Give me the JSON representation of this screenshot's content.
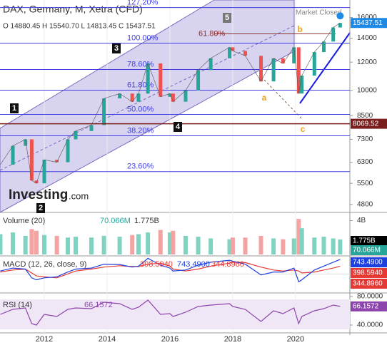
{
  "header": {
    "title": "DAX, Germany, M, Xetra (CFD)",
    "ohlc": "O 14880.45 H 15540.70 L 14813.45 C 15437.51",
    "status": "Market Closed",
    "logo": "Investing",
    "logo_suffix": ".com"
  },
  "annotations": [
    "1",
    "2",
    "3",
    "4",
    "5",
    "a",
    "b",
    "c"
  ],
  "chart_data": [
    {
      "type": "line",
      "name": "price",
      "x": [
        2010.6,
        2011.0,
        2011.4,
        2011.6,
        2011.75,
        2012.0,
        2012.4,
        2012.75,
        2013.0,
        2013.5,
        2013.9,
        2014.4,
        2014.8,
        2015.0,
        2015.3,
        2015.7,
        2016.0,
        2016.1,
        2016.5,
        2016.9,
        2017.3,
        2017.9,
        2018.0,
        2018.4,
        2018.9,
        2019.3,
        2019.6,
        2019.95,
        2020.1,
        2020.2,
        2020.6,
        2020.9,
        2021.2,
        2021.42
      ],
      "values": [
        6200,
        7000,
        7300,
        5600,
        5500,
        6400,
        6300,
        7300,
        7700,
        8000,
        9500,
        9800,
        9300,
        9800,
        11900,
        9600,
        9800,
        9300,
        10000,
        11400,
        12300,
        13200,
        12900,
        12500,
        10600,
        12300,
        11900,
        13200,
        9800,
        11000,
        12800,
        13700,
        15000,
        15437.51
      ],
      "color": "#26a69a",
      "down_color": "#ef5350",
      "log_scale": true,
      "ylim": [
        4560,
        17900
      ],
      "yticks": [
        4800,
        5500,
        6300,
        7300,
        8500,
        10000,
        12000,
        14000,
        16000
      ],
      "xlim": [
        2010.59,
        2021.73
      ],
      "xticks": [
        2012,
        2014,
        2016,
        2018,
        2020
      ],
      "fib_levels": [
        {
          "label": "127.20%",
          "value": 17050
        },
        {
          "label": "100.00%",
          "value": 13560
        },
        {
          "label": "78.60%",
          "value": 11440
        },
        {
          "label": "61.80%",
          "value": 10020
        },
        {
          "label": "50.00%",
          "value": 8570
        },
        {
          "label": "38.20%",
          "value": 7470
        },
        {
          "label": "23.60%",
          "value": 5930
        }
      ],
      "fib_color": "#3f3fdf",
      "retracement": {
        "label": "61.80%",
        "value": 14400,
        "color": "#8b2e2e"
      },
      "price_tags": [
        {
          "value": 15437.51,
          "label": "15437.51",
          "color": "#1e88e5"
        },
        {
          "value": 8069.52,
          "label": "8069.52",
          "color": "#7b1e1e"
        }
      ]
    },
    {
      "type": "bar",
      "name": "volume",
      "title": "Volume (20)",
      "readings": [
        "70.066M",
        "1.775B"
      ],
      "values": [
        2.4,
        2.6,
        2.2,
        3.0,
        2.8,
        2.3,
        2.2,
        2.0,
        2.1,
        2.0,
        2.2,
        2.1,
        2.3,
        2.4,
        2.6,
        2.9,
        2.6,
        2.8,
        2.2,
        2.1,
        1.9,
        1.8,
        2.0,
        2.0,
        2.2,
        1.9,
        1.8,
        1.9,
        4.2,
        3.1,
        2.0,
        2.1,
        1.9,
        1.775
      ],
      "ylim": [
        0,
        4.8
      ],
      "yticks": [
        {
          "value": 4,
          "label": "4B"
        }
      ],
      "tags": [
        {
          "label": "1.775B",
          "color": "#000000"
        },
        {
          "label": "70.066M",
          "color": "#26a69a"
        }
      ]
    },
    {
      "type": "line",
      "name": "macd",
      "title": "MACD (12, 26, close, 9)",
      "series": [
        {
          "name": "398.5940",
          "color": "#e53935",
          "values": [
            100,
            200,
            250,
            50,
            -100,
            -150,
            -200,
            0,
            150,
            250,
            350,
            420,
            380,
            380,
            500,
            550,
            400,
            250,
            150,
            250,
            400,
            550,
            600,
            580,
            350,
            200,
            150,
            200,
            150,
            50,
            100,
            200,
            300,
            398.594
          ]
        },
        {
          "name": "743.4900",
          "color": "#1e3fdf",
          "values": [
            150,
            300,
            250,
            -200,
            -300,
            -200,
            -150,
            100,
            250,
            300,
            500,
            480,
            350,
            400,
            800,
            450,
            300,
            150,
            200,
            450,
            600,
            700,
            650,
            500,
            -50,
            100,
            100,
            300,
            -400,
            -300,
            200,
            400,
            600,
            743.49
          ]
        }
      ],
      "ylim": [
        -900,
        850
      ],
      "tags": [
        {
          "label": "743.4900",
          "color": "#1e3fdf"
        },
        {
          "label": "398.5940",
          "color": "#e53935"
        },
        {
          "label": "344.8960",
          "color": "#e53935"
        }
      ]
    },
    {
      "type": "line",
      "name": "rsi",
      "title": "RSI (14)",
      "reading": "66.1572",
      "values": [
        55,
        62,
        64,
        42,
        40,
        55,
        52,
        62,
        64,
        63,
        72,
        70,
        62,
        65,
        75,
        55,
        56,
        52,
        58,
        66,
        68,
        70,
        66,
        62,
        45,
        60,
        56,
        64,
        42,
        52,
        60,
        63,
        68,
        66.1572
      ],
      "color": "#8e44ad",
      "ylim": [
        30,
        84
      ],
      "yticks": [
        {
          "value": 80,
          "label": "80.0000"
        },
        {
          "value": 40,
          "label": "40.0000"
        }
      ],
      "tag": {
        "label": "66.1572",
        "color": "#8e44ad"
      }
    }
  ]
}
